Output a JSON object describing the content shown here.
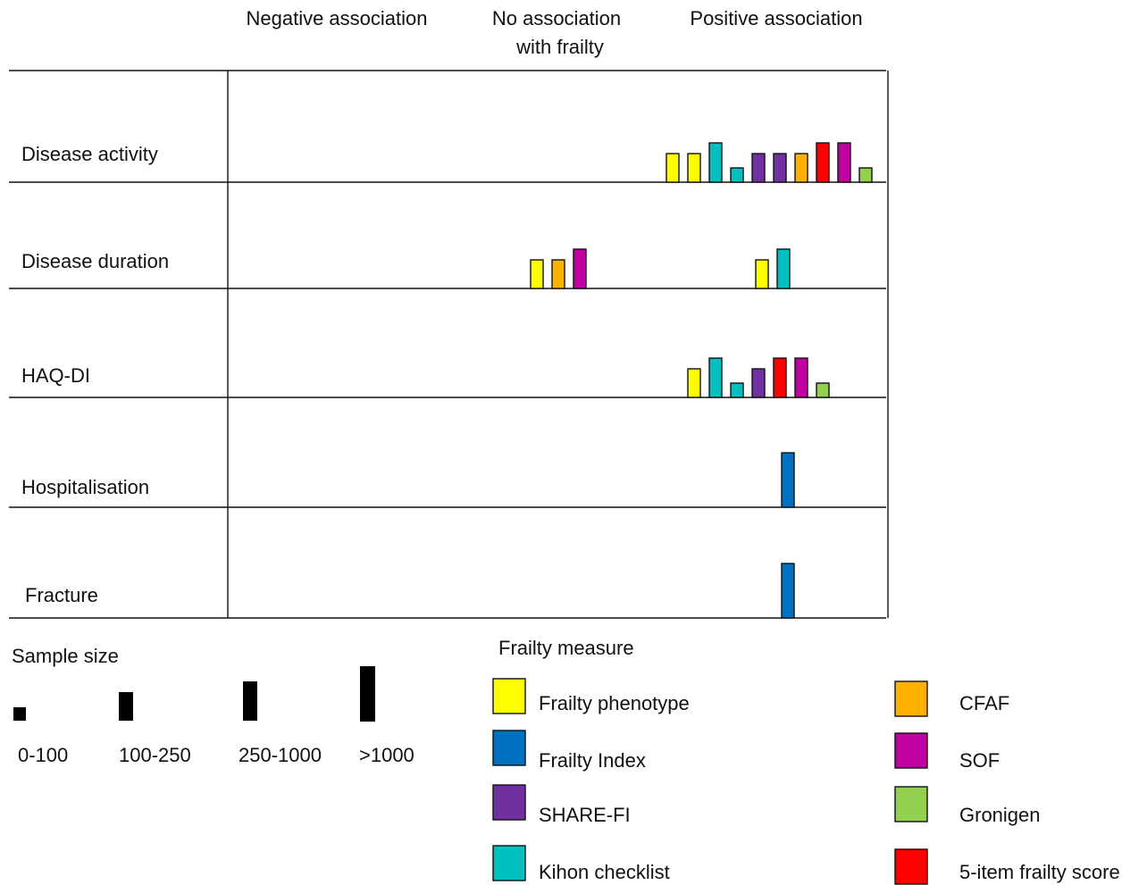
{
  "columns": {
    "negative": "Negative association",
    "none_line1": "No association",
    "none_line2": "with frailty",
    "positive": "Positive association"
  },
  "rows": [
    {
      "label": "Disease activity"
    },
    {
      "label": "Disease duration"
    },
    {
      "label": "HAQ-DI"
    },
    {
      "label": "Hospitalisation"
    },
    {
      "label": "Fracture"
    }
  ],
  "measures": {
    "phenotype": {
      "label": "Frailty phenotype",
      "color": "#ffff00"
    },
    "index": {
      "label": "Frailty Index",
      "color": "#0070c0"
    },
    "share": {
      "label": "SHARE-FI",
      "color": "#7030a0"
    },
    "kihon": {
      "label": "Kihon checklist",
      "color": "#00c0c0"
    },
    "cfaf": {
      "label": "CFAF",
      "color": "#ffb300"
    },
    "sof": {
      "label": "SOF",
      "color": "#c000a0"
    },
    "gronigen": {
      "label": "Gronigen",
      "color": "#92d050"
    },
    "five_item": {
      "label": "5-item frailty score",
      "color": "#ff0000"
    }
  },
  "legend": {
    "sample_title": "Sample size",
    "sizes": [
      "0-100",
      "100-250",
      "250-1000",
      ">1000"
    ],
    "measure_title": "Frailty measure"
  },
  "associations": [
    {
      "row": 0,
      "column": "positive",
      "studies": [
        {
          "measure": "phenotype",
          "size": "100-250"
        },
        {
          "measure": "phenotype",
          "size": "100-250"
        },
        {
          "measure": "kihon",
          "size": "250-1000"
        },
        {
          "measure": "kihon",
          "size": "0-100"
        },
        {
          "measure": "share",
          "size": "100-250"
        },
        {
          "measure": "share",
          "size": "100-250"
        },
        {
          "measure": "cfaf",
          "size": "100-250"
        },
        {
          "measure": "five_item",
          "size": "250-1000"
        },
        {
          "measure": "sof",
          "size": "250-1000"
        },
        {
          "measure": "gronigen",
          "size": "0-100"
        }
      ]
    },
    {
      "row": 1,
      "column": "none",
      "studies": [
        {
          "measure": "phenotype",
          "size": "100-250"
        },
        {
          "measure": "cfaf",
          "size": "100-250"
        },
        {
          "measure": "sof",
          "size": "250-1000"
        }
      ]
    },
    {
      "row": 1,
      "column": "positive",
      "studies": [
        {
          "measure": "phenotype",
          "size": "100-250"
        },
        {
          "measure": "kihon",
          "size": "250-1000"
        }
      ]
    },
    {
      "row": 2,
      "column": "positive",
      "studies": [
        {
          "measure": "phenotype",
          "size": "100-250"
        },
        {
          "measure": "kihon",
          "size": "250-1000"
        },
        {
          "measure": "kihon",
          "size": "0-100"
        },
        {
          "measure": "share",
          "size": "100-250"
        },
        {
          "measure": "five_item",
          "size": "250-1000"
        },
        {
          "measure": "sof",
          "size": "250-1000"
        },
        {
          "measure": "gronigen",
          "size": "0-100"
        }
      ]
    },
    {
      "row": 3,
      "column": "positive",
      "studies": [
        {
          "measure": "index",
          "size": ">1000"
        }
      ]
    },
    {
      "row": 4,
      "column": "positive",
      "studies": [
        {
          "measure": "index",
          "size": ">1000"
        }
      ]
    }
  ]
}
